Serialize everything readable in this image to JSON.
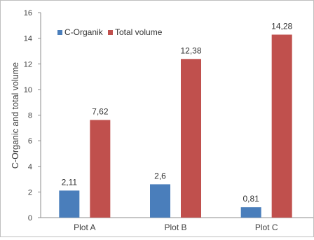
{
  "chart_data": {
    "type": "bar",
    "title": "",
    "xlabel": "",
    "ylabel": "C-Organic and total volume",
    "ylim": [
      0,
      16
    ],
    "yticks": [
      0,
      2,
      4,
      6,
      8,
      10,
      12,
      14,
      16
    ],
    "categories": [
      "Plot A",
      "Plot B",
      "Plot C"
    ],
    "grid": false,
    "legend_position": "top-left",
    "series": [
      {
        "name": "C-Organik",
        "color": "#4a7ebb",
        "values": [
          2.11,
          2.6,
          0.81
        ],
        "labels": [
          "2,11",
          "2,6",
          "0,81"
        ]
      },
      {
        "name": "Total volume",
        "color": "#c0504d",
        "values": [
          7.62,
          12.38,
          14.28
        ],
        "labels": [
          "7,62",
          "12,38",
          "14,28"
        ]
      }
    ]
  }
}
